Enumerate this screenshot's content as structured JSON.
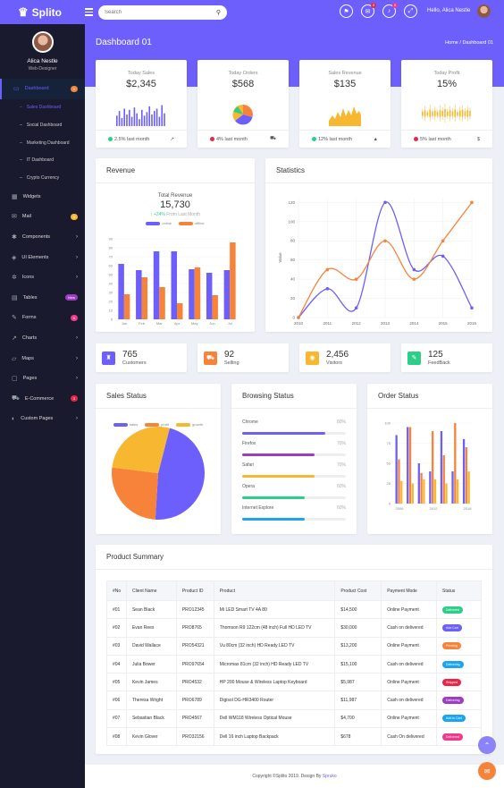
{
  "colors": {
    "primary": "#6c5ffc",
    "orange": "#f7833a",
    "yellow": "#f7b731",
    "green": "#2dce89",
    "pink": "#f1388b",
    "red": "#e82646",
    "blue": "#1aa5f0",
    "sidebar": "#1a1a2e"
  },
  "topbar": {
    "brand": "Splito",
    "brand_icon": "crown-icon",
    "search_placeholder": "Search",
    "search_icon": "search-icon",
    "greeting": "Hello,",
    "user": "Alica Nestle",
    "icons": [
      {
        "name": "flag-icon"
      },
      {
        "name": "mail-icon",
        "badge": "3"
      },
      {
        "name": "bell-icon",
        "badge": "5"
      },
      {
        "name": "fullscreen-icon"
      }
    ]
  },
  "sidebar": {
    "user_name": "Alica Nestle",
    "user_role": "Web-Designer",
    "dashboard": {
      "label": "Dashboard",
      "badge": "6",
      "subitems": [
        "Sales Dashboard",
        "Social Dashboard",
        "Marketing Dashboard",
        "IT Dashboard",
        "Crypto Currency"
      ]
    },
    "items": [
      {
        "label": "Widgets"
      },
      {
        "label": "Mail",
        "badge": "3"
      },
      {
        "label": "Components",
        "arrow": true
      },
      {
        "label": "UI Elements",
        "arrow": true
      },
      {
        "label": "Icons",
        "arrow": true
      },
      {
        "label": "Tables",
        "badge": "New"
      },
      {
        "label": "Forms",
        "badge": "8"
      },
      {
        "label": "Charts",
        "arrow": true
      },
      {
        "label": "Maps",
        "arrow": true
      },
      {
        "label": "Pages",
        "arrow": true
      },
      {
        "label": "E-Commerce",
        "badge": "3"
      },
      {
        "label": "Custom Pages",
        "arrow": true
      }
    ]
  },
  "page": {
    "title": "Dashboard 01",
    "breadcrumb": [
      "Home",
      "Dashboard 01"
    ]
  },
  "stats": [
    {
      "label": "Today Sales",
      "value": "$2,345",
      "footer": "2.5% last month",
      "dot": "green",
      "icon": "chart-icon"
    },
    {
      "label": "Today Orders",
      "value": "$568",
      "footer": "4% last month",
      "dot": "red",
      "icon": "cart-icon"
    },
    {
      "label": "Sales Revenue",
      "value": "$135",
      "footer": "12% last month",
      "dot": "green",
      "icon": "signal-icon"
    },
    {
      "label": "Today Profit",
      "value": "15%",
      "footer": "5% last month",
      "dot": "red",
      "icon": "dollar-icon"
    }
  ],
  "revenue": {
    "title": "Revenue",
    "subtitle": "Total Revenue",
    "total": "15,730",
    "change": "+24%",
    "change_text": "From Last Month",
    "chart_data": {
      "type": "bar",
      "categories": [
        "Jan",
        "Feb",
        "Mar",
        "Apr",
        "May",
        "Jun",
        "Jul"
      ],
      "series": [
        {
          "name": "online",
          "values": [
            62,
            55,
            76,
            76,
            56,
            52,
            55
          ]
        },
        {
          "name": "offline",
          "values": [
            28,
            47,
            36,
            18,
            58,
            27,
            86
          ]
        }
      ],
      "ylim": [
        0,
        90
      ],
      "yticks": [
        0,
        10,
        20,
        30,
        40,
        50,
        60,
        70,
        80,
        90
      ]
    }
  },
  "statistics": {
    "title": "Statistics",
    "chart_data": {
      "type": "line",
      "x": [
        "2010",
        "2011",
        "2012",
        "2013",
        "2014",
        "2015",
        "2016"
      ],
      "ylabel": "Value",
      "ylim": [
        0,
        125
      ],
      "yticks": [
        0,
        20,
        40,
        60,
        80,
        100,
        120
      ],
      "series": [
        {
          "values": [
            0,
            30,
            10,
            120,
            50,
            64,
            10
          ]
        },
        {
          "values": [
            0,
            50,
            40,
            80,
            40,
            80,
            120
          ]
        }
      ]
    }
  },
  "info": [
    {
      "value": "765",
      "label": "Customers",
      "color": "primary",
      "icon": "bag-icon"
    },
    {
      "value": "92",
      "label": "Selling",
      "color": "orange",
      "icon": "cart-icon"
    },
    {
      "value": "2,456",
      "label": "Visitors",
      "color": "yellow",
      "icon": "users-icon"
    },
    {
      "value": "125",
      "label": "FeedBack",
      "color": "green",
      "icon": "feedback-icon"
    }
  ],
  "sales_status": {
    "title": "Sales Status",
    "chart_data": {
      "type": "pie",
      "series": [
        {
          "name": "sales",
          "value": 47,
          "color": "#6c5ffc"
        },
        {
          "name": "profit",
          "value": 26,
          "color": "#f7833a"
        },
        {
          "name": "growth",
          "value": 27,
          "color": "#f7b731"
        }
      ]
    }
  },
  "browsing": {
    "title": "Browsing Status",
    "items": [
      {
        "name": "Chrome",
        "pct": "80%",
        "value": 0.8,
        "color": "#6c5ffc"
      },
      {
        "name": "Firefox",
        "pct": "70%",
        "value": 0.7,
        "color": "#9b3cc3"
      },
      {
        "name": "Safari",
        "pct": "70%",
        "value": 0.7,
        "color": "#f7b731"
      },
      {
        "name": "Opera",
        "pct": "60%",
        "value": 0.6,
        "color": "#2dce89"
      },
      {
        "name": "Internet Explore",
        "pct": "60%",
        "value": 0.6,
        "color": "#1aa5f0"
      }
    ]
  },
  "order_status": {
    "title": "Order Status",
    "chart_data": {
      "type": "bar",
      "x_labels": [
        "2006",
        "2012",
        "2018"
      ],
      "ylim": [
        0,
        100
      ],
      "yticks": [
        0,
        25,
        50,
        75,
        100
      ],
      "series": [
        {
          "name": "a",
          "color": "#6c5ffc",
          "values": [
            85,
            95,
            50,
            40,
            90,
            40,
            80
          ]
        },
        {
          "name": "b",
          "color": "#f7833a",
          "values": [
            55,
            95,
            38,
            90,
            60,
            100,
            70
          ]
        },
        {
          "name": "c",
          "color": "#f7b731",
          "values": [
            28,
            25,
            30,
            30,
            25,
            30,
            40
          ]
        }
      ]
    }
  },
  "product_summary": {
    "title": "Product Summary",
    "columns": [
      "#No",
      "Client Name",
      "Product ID",
      "Product",
      "Product Cost",
      "Payment Mode",
      "Status"
    ],
    "rows": [
      [
        "#01",
        "Sean Black",
        "PRO12345",
        "Mi LED Smart TV 4A 80",
        "$14,500",
        "Online Payment",
        "Delivered"
      ],
      [
        "#02",
        "Evan Rees",
        "PRO8765",
        "Thomson R9 122cm (48 inch) Full HD LED TV",
        "$30,000",
        "Cash on delivered",
        "Add Cart"
      ],
      [
        "#03",
        "David Wallace",
        "PRO54321",
        "Vu 80cm (32 inch) HD Ready LED TV",
        "$13,200",
        "Online Payment",
        "Pending"
      ],
      [
        "#04",
        "Julia Bower",
        "PRO97654",
        "Micromax 81cm (32 inch) HD Ready LED TV",
        "$15,100",
        "Cash on delivered",
        "Delivering"
      ],
      [
        "#05",
        "Kevin James",
        "PRO4532",
        "HP 200 Mouse & Wireless Laptop Keyboard",
        "$5,987",
        "Online Payment",
        "Shipped"
      ],
      [
        "#06",
        "Theresa Wright",
        "PRO6789",
        "Digisol DG-HR3400 Router",
        "$11,987",
        "Cash on delivered",
        "Delivering"
      ],
      [
        "#07",
        "Sebastian Black",
        "PRO4567",
        "Dell WM118 Wireless Optical Mouse",
        "$4,700",
        "Online Payment",
        "Add to Cart"
      ],
      [
        "#08",
        "Kevin Glover",
        "PRO32156",
        "Dell 16 inch Laptop Backpack",
        "$678",
        "Cash On delivered",
        "Delivered"
      ]
    ],
    "status_colors": [
      "#2dce89",
      "#6c5ffc",
      "#f7833a",
      "#1aa5f0",
      "#e82646",
      "#9b3cc3",
      "#1aa5f0",
      "#f1388b"
    ]
  },
  "footer": {
    "text": "Copyright ©Splito 2019. Design By",
    "link": "Spruko"
  }
}
